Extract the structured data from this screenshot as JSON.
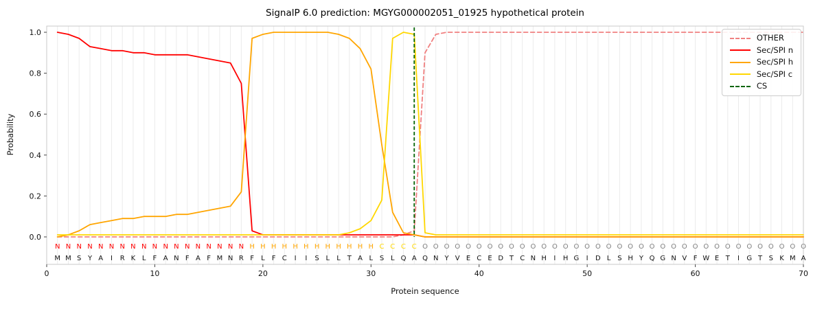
{
  "chart_data": {
    "type": "line",
    "title": "SignalP 6.0 prediction: MGYG000002051_01925 hypothetical protein",
    "xlabel": "Protein sequence",
    "ylabel": "Probability",
    "xlim": [
      0,
      70
    ],
    "ylim": [
      0.0,
      1.0
    ],
    "x_ticks": [
      0,
      10,
      20,
      30,
      40,
      50,
      60,
      70
    ],
    "y_ticks": [
      0,
      0.2,
      0.4,
      0.6,
      0.8,
      1
    ],
    "grid": "vertical-line-per-residue",
    "legend_position": "upper-right",
    "series": [
      {
        "name": "OTHER",
        "color": "#f08080",
        "dashed": true,
        "values": [
          0,
          0,
          0,
          0,
          0,
          0,
          0,
          0,
          0,
          0,
          0,
          0,
          0,
          0,
          0,
          0,
          0,
          0,
          0,
          0,
          0,
          0,
          0,
          0,
          0,
          0,
          0,
          0,
          0,
          0,
          0,
          0,
          0.01,
          0.03,
          0.9,
          0.99,
          1,
          1,
          1,
          1,
          1,
          1,
          1,
          1,
          1,
          1,
          1,
          1,
          1,
          1,
          1,
          1,
          1,
          1,
          1,
          1,
          1,
          1,
          1,
          1,
          1,
          1,
          1,
          1,
          1,
          1,
          1,
          1,
          1,
          1
        ]
      },
      {
        "name": "Sec/SPI n",
        "color": "#ff0000",
        "dashed": false,
        "values": [
          1,
          0.99,
          0.97,
          0.93,
          0.92,
          0.91,
          0.91,
          0.9,
          0.9,
          0.89,
          0.89,
          0.89,
          0.89,
          0.88,
          0.87,
          0.86,
          0.85,
          0.75,
          0.03,
          0.01,
          0.01,
          0.01,
          0.01,
          0.01,
          0.01,
          0.01,
          0.01,
          0.01,
          0.01,
          0.01,
          0.01,
          0.01,
          0.01,
          0.01,
          0,
          0,
          0,
          0,
          0,
          0,
          0,
          0,
          0,
          0,
          0,
          0,
          0,
          0,
          0,
          0,
          0,
          0,
          0,
          0,
          0,
          0,
          0,
          0,
          0,
          0,
          0,
          0,
          0,
          0,
          0,
          0,
          0,
          0,
          0,
          0
        ]
      },
      {
        "name": "Sec/SPI h",
        "color": "#ffa500",
        "dashed": false,
        "values": [
          0,
          0.01,
          0.03,
          0.06,
          0.07,
          0.08,
          0.09,
          0.09,
          0.1,
          0.1,
          0.1,
          0.11,
          0.11,
          0.12,
          0.13,
          0.14,
          0.15,
          0.22,
          0.97,
          0.99,
          1,
          1,
          1,
          1,
          1,
          1,
          0.99,
          0.97,
          0.92,
          0.82,
          0.45,
          0.12,
          0.02,
          0.01,
          0,
          0,
          0,
          0,
          0,
          0,
          0,
          0,
          0,
          0,
          0,
          0,
          0,
          0,
          0,
          0,
          0,
          0,
          0,
          0,
          0,
          0,
          0,
          0,
          0,
          0,
          0,
          0,
          0,
          0,
          0,
          0,
          0,
          0,
          0,
          0
        ]
      },
      {
        "name": "Sec/SPI c",
        "color": "#ffd700",
        "dashed": false,
        "values": [
          0.01,
          0.01,
          0.01,
          0.01,
          0.01,
          0.01,
          0.01,
          0.01,
          0.01,
          0.01,
          0.01,
          0.01,
          0.01,
          0.01,
          0.01,
          0.01,
          0.01,
          0.01,
          0.01,
          0.01,
          0.01,
          0.01,
          0.01,
          0.01,
          0.01,
          0.01,
          0.01,
          0.02,
          0.04,
          0.08,
          0.18,
          0.97,
          1,
          0.99,
          0.02,
          0.01,
          0.01,
          0.01,
          0.01,
          0.01,
          0.01,
          0.01,
          0.01,
          0.01,
          0.01,
          0.01,
          0.01,
          0.01,
          0.01,
          0.01,
          0.01,
          0.01,
          0.01,
          0.01,
          0.01,
          0.01,
          0.01,
          0.01,
          0.01,
          0.01,
          0.01,
          0.01,
          0.01,
          0.01,
          0.01,
          0.01,
          0.01,
          0.01,
          0.01,
          0.01
        ]
      }
    ],
    "cs_line": {
      "label": "CS",
      "position": 34,
      "color": "#006400",
      "dashed": true
    },
    "sequence": "MMSYAIRKLFANFAFMNRFLFCIISLLTALSLQAQNYVECEDTCNHIHGIDLSHYQGNVFWETIGTSKMA",
    "region_labels": "NNNNNNNNNNNNNNNNNNHHHHHHHHHHHHCCCCOOOOOOOOOOOOOOOOOOOOOOOOOOOOOOOOOOOO",
    "region_colors": {
      "N": "#ff0000",
      "H": "#ffa500",
      "C": "#ffd700",
      "O": "#808080"
    }
  }
}
